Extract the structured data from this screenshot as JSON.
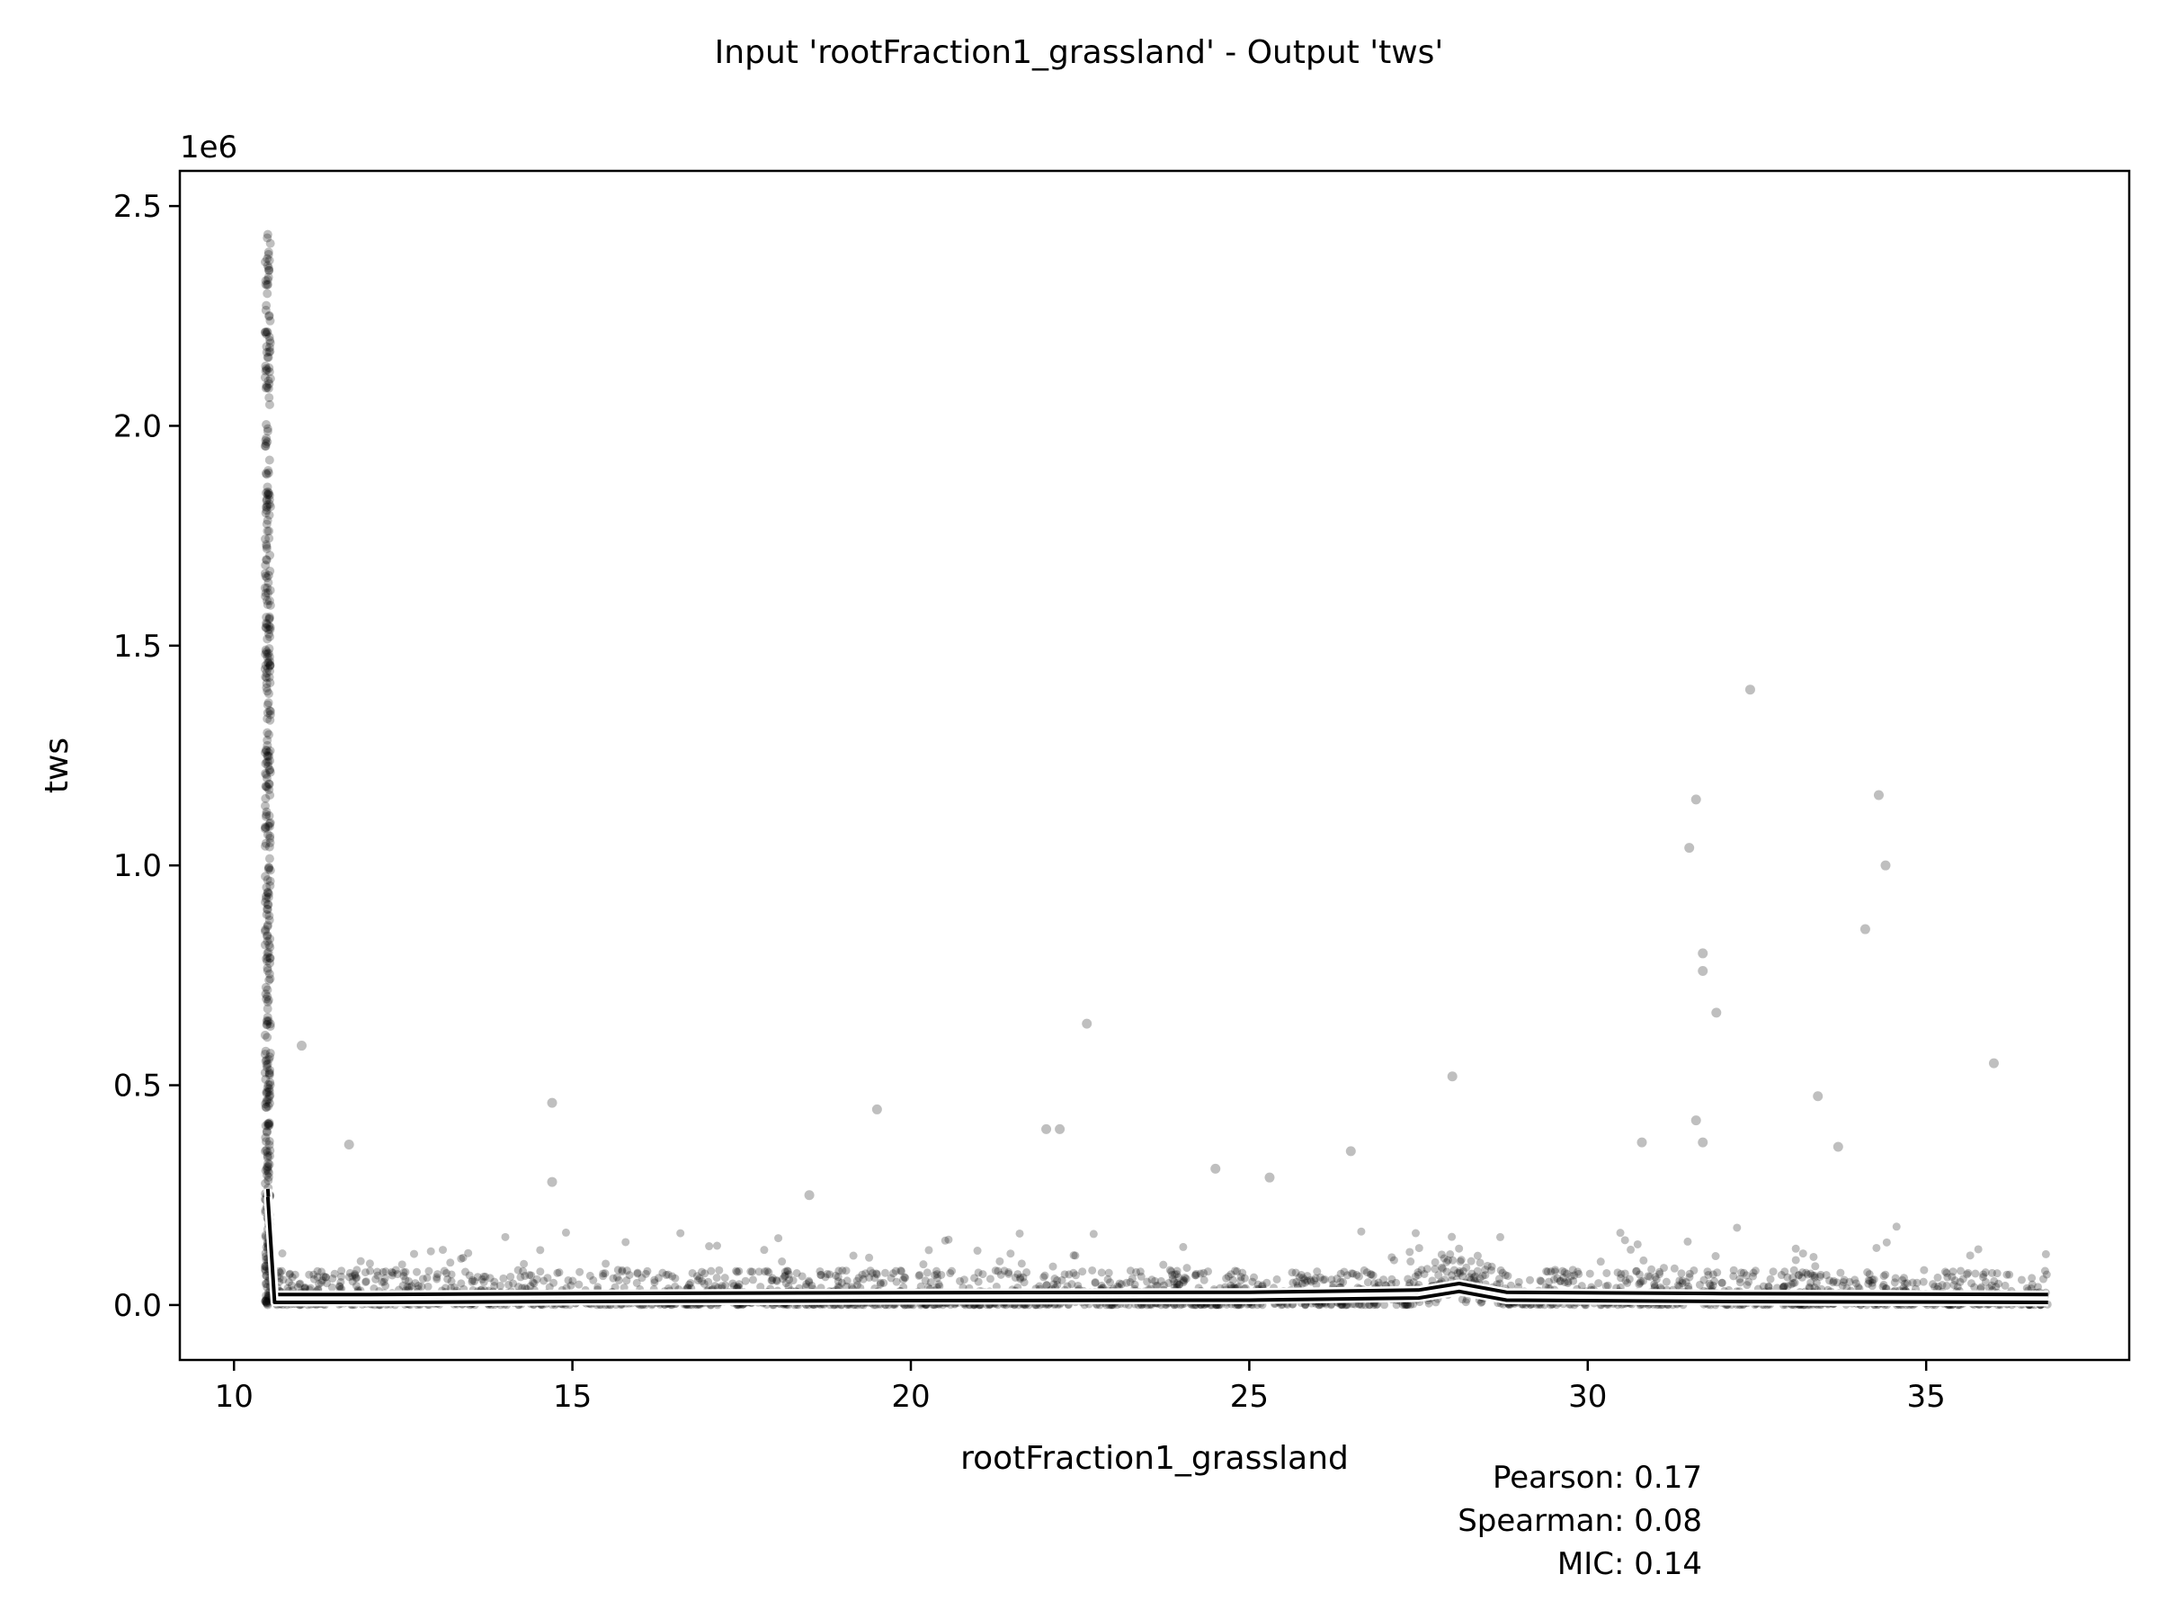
{
  "chart_data": {
    "type": "scatter",
    "title": "Input 'rootFraction1_grassland' - Output 'tws'",
    "xlabel": "rootFraction1_grassland",
    "ylabel": "tws",
    "y_offset_label": "1e6",
    "xlim": [
      9.2,
      38.0
    ],
    "ylim": [
      -0.125,
      2.58
    ],
    "y_scale_note": "values in millions (1e6)",
    "xticks": [
      10,
      15,
      20,
      25,
      30,
      35
    ],
    "xtick_labels": [
      "10",
      "15",
      "20",
      "25",
      "30",
      "35"
    ],
    "yticks": [
      0.0,
      0.5,
      1.0,
      1.5,
      2.0,
      2.5
    ],
    "ytick_labels": [
      "0.0",
      "0.5",
      "1.0",
      "1.5",
      "2.0",
      "2.5"
    ],
    "grid": false,
    "point_color": "#000000",
    "point_alpha": 0.25,
    "dense_column_x": 10.5,
    "dense_column_y_range": [
      0.0,
      2.45
    ],
    "outliers": {
      "x": [
        11.0,
        11.7,
        14.7,
        14.7,
        18.5,
        19.5,
        22.0,
        22.2,
        22.6,
        24.5,
        25.3,
        26.5,
        28.0,
        31.5,
        31.6,
        31.7,
        31.7,
        31.6,
        31.7,
        31.9,
        32.4,
        33.4,
        33.7,
        34.1,
        34.3,
        34.4,
        36.0,
        30.8
      ],
      "y": [
        0.59,
        0.365,
        0.46,
        0.28,
        0.25,
        0.445,
        0.4,
        0.4,
        0.64,
        0.31,
        0.29,
        0.35,
        0.52,
        1.04,
        1.15,
        0.8,
        0.76,
        0.42,
        0.37,
        0.665,
        1.4,
        0.475,
        0.36,
        0.855,
        1.16,
        1.0,
        0.55,
        0.37
      ]
    },
    "trend_line": {
      "x": [
        10.5,
        10.6,
        12.0,
        15.0,
        20.0,
        25.0,
        27.5,
        28.1,
        28.8,
        32.0,
        36.8
      ],
      "y": [
        0.25,
        0.01,
        0.01,
        0.012,
        0.014,
        0.015,
        0.02,
        0.035,
        0.015,
        0.012,
        0.01
      ]
    },
    "annotations": {
      "pearson": "Pearson: 0.17",
      "spearman": "Spearman: 0.08",
      "mic": "MIC: 0.14"
    }
  }
}
